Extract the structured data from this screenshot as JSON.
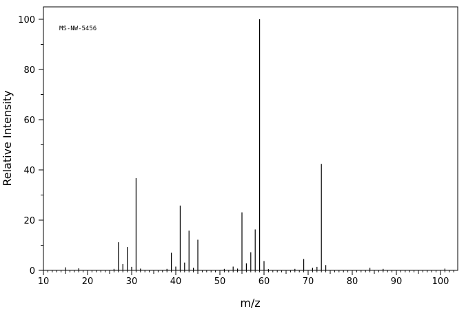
{
  "chart_data": {
    "type": "bar",
    "title": "",
    "annotation": "MS-NW-5456",
    "xlabel": "m/z",
    "ylabel": "Relative Intensity",
    "xlim": [
      10,
      103
    ],
    "ylim": [
      0,
      100
    ],
    "x_ticks": [
      10,
      20,
      30,
      40,
      50,
      60,
      70,
      80,
      90,
      100
    ],
    "y_ticks": [
      0,
      20,
      40,
      60,
      80,
      100
    ],
    "grid": false,
    "legend": "none",
    "peaks": [
      {
        "mz": 15,
        "intensity": 1.2
      },
      {
        "mz": 18,
        "intensity": 0.8
      },
      {
        "mz": 26,
        "intensity": 0.6
      },
      {
        "mz": 27,
        "intensity": 11.2
      },
      {
        "mz": 28,
        "intensity": 2.5
      },
      {
        "mz": 29,
        "intensity": 9.3
      },
      {
        "mz": 30,
        "intensity": 1.4
      },
      {
        "mz": 31,
        "intensity": 36.7
      },
      {
        "mz": 32,
        "intensity": 0.7
      },
      {
        "mz": 38,
        "intensity": 0.6
      },
      {
        "mz": 39,
        "intensity": 7.0
      },
      {
        "mz": 40,
        "intensity": 1.5
      },
      {
        "mz": 41,
        "intensity": 25.8
      },
      {
        "mz": 42,
        "intensity": 3.1
      },
      {
        "mz": 43,
        "intensity": 15.8
      },
      {
        "mz": 44,
        "intensity": 1.0
      },
      {
        "mz": 45,
        "intensity": 12.2
      },
      {
        "mz": 51,
        "intensity": 0.6
      },
      {
        "mz": 53,
        "intensity": 1.5
      },
      {
        "mz": 54,
        "intensity": 0.7
      },
      {
        "mz": 55,
        "intensity": 23.1
      },
      {
        "mz": 56,
        "intensity": 2.8
      },
      {
        "mz": 57,
        "intensity": 7.2
      },
      {
        "mz": 58,
        "intensity": 16.3
      },
      {
        "mz": 59,
        "intensity": 100
      },
      {
        "mz": 60,
        "intensity": 3.7
      },
      {
        "mz": 61,
        "intensity": 0.5
      },
      {
        "mz": 67,
        "intensity": 0.6
      },
      {
        "mz": 69,
        "intensity": 4.5
      },
      {
        "mz": 71,
        "intensity": 1.0
      },
      {
        "mz": 72,
        "intensity": 1.4
      },
      {
        "mz": 73,
        "intensity": 42.4
      },
      {
        "mz": 74,
        "intensity": 2.1
      },
      {
        "mz": 84,
        "intensity": 1.0
      },
      {
        "mz": 87,
        "intensity": 0.6
      },
      {
        "mz": 101,
        "intensity": 0.7
      }
    ]
  }
}
